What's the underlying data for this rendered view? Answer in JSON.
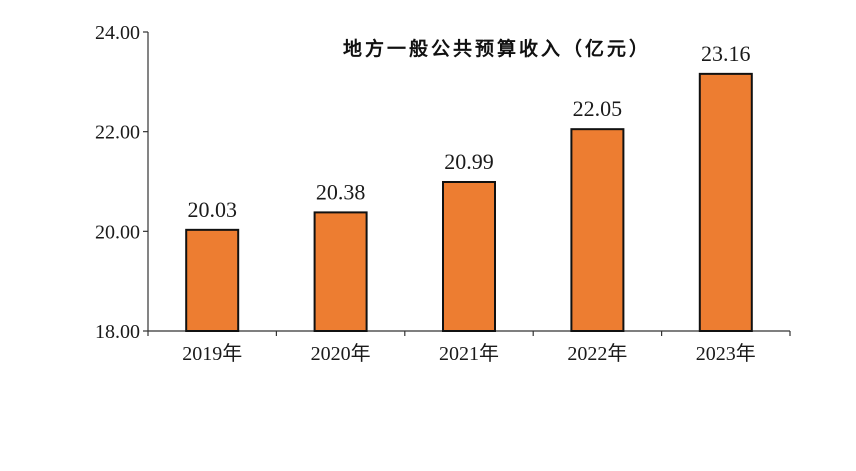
{
  "chart_data": {
    "type": "bar",
    "title": "地方一般公共预算收入（亿元）",
    "categories": [
      "2019年",
      "2020年",
      "2021年",
      "2022年",
      "2023年"
    ],
    "values": [
      20.03,
      20.38,
      20.99,
      22.05,
      23.16
    ],
    "value_labels": [
      "20.03",
      "20.38",
      "20.99",
      "22.05",
      "23.16"
    ],
    "ylim": [
      18,
      24
    ],
    "yticks": [
      18,
      20,
      22,
      24
    ],
    "ytick_labels": [
      "18.00",
      "20.00",
      "22.00",
      "24.00"
    ],
    "xlabel": "",
    "ylabel": "",
    "grid": false,
    "legend": "none",
    "colors": {
      "bar": "#ED7D31",
      "outline": "#111111"
    }
  }
}
